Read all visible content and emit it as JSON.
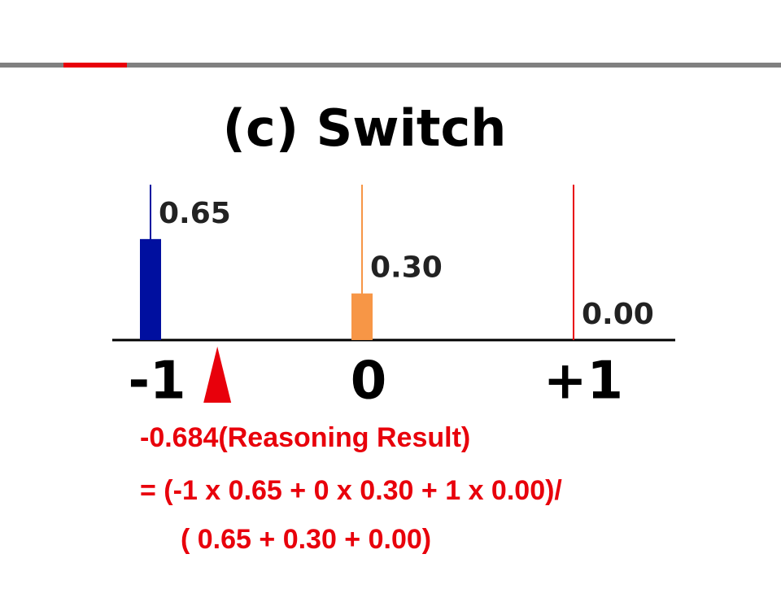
{
  "chart_data": {
    "type": "bar",
    "title": "(c) Switch",
    "categories": [
      "-1",
      "0",
      "+1"
    ],
    "values": [
      0.65,
      0.3,
      0.0
    ],
    "value_labels": [
      "0.65",
      "0.30",
      "0.00"
    ],
    "colors": [
      "#000f9f",
      "#f79646",
      "#e8000b"
    ],
    "ylim": [
      0,
      1
    ],
    "xpositions": [
      -1,
      0,
      1
    ],
    "result": -0.684,
    "result_color": "#e8000b",
    "annotations": [
      "-0.684(Reasoning Result)",
      "=  (-1 x 0.65 + 0 x 0.30 +  1 x 0.00)/",
      "( 0.65 + 0.30 + 0.00)"
    ]
  }
}
